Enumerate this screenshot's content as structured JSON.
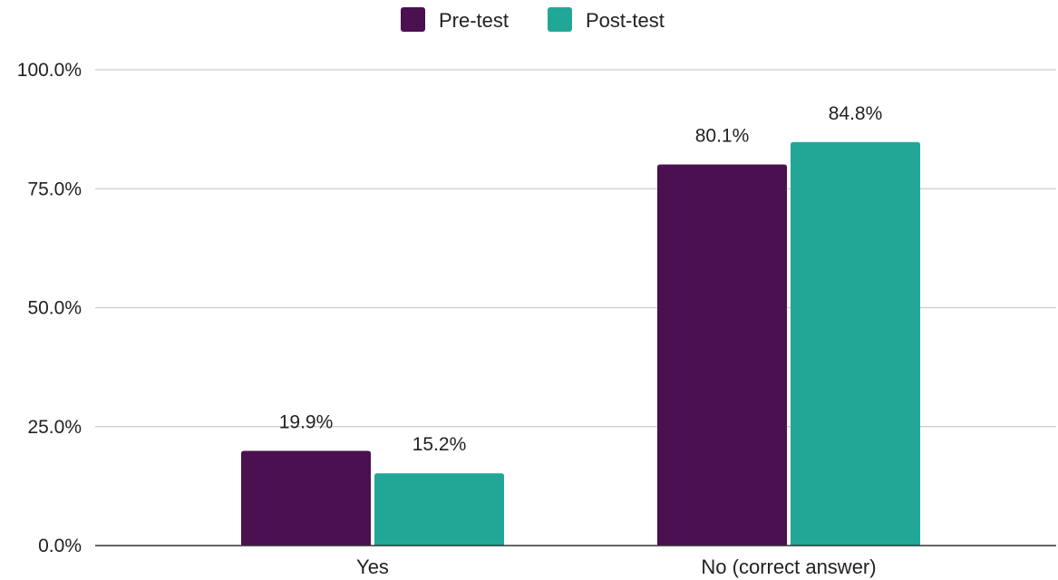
{
  "chart_data": {
    "type": "bar",
    "title": "",
    "xlabel": "",
    "ylabel": "",
    "categories": [
      "Yes",
      "No (correct answer)"
    ],
    "series": [
      {
        "name": "Pre-test",
        "values": [
          19.9,
          80.1
        ],
        "labels": [
          "19.9%",
          "80.1%"
        ],
        "color": "#4a104f"
      },
      {
        "name": "Post-test",
        "values": [
          15.2,
          84.8
        ],
        "labels": [
          "15.2%",
          "84.8%"
        ],
        "color": "#22a797"
      }
    ],
    "ylim": [
      0,
      100
    ],
    "yticks": [
      0,
      25,
      50,
      75,
      100
    ],
    "ytick_labels": [
      "0.0%",
      "25.0%",
      "50.0%",
      "75.0%",
      "100.0%"
    ],
    "grid": true,
    "legend": "top-center"
  },
  "colors": {
    "gridline": "#cccccc",
    "axis": "#333333",
    "text": "#222222"
  }
}
